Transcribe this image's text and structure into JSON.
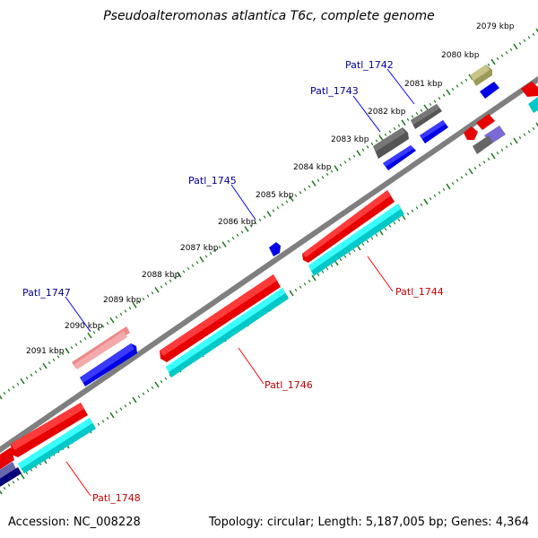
{
  "title": "Pseudoalteromonas atlantica T6c, complete genome",
  "footer": {
    "accession": "Accession: NC_008228",
    "summary": "Topology: circular; Length: 5,187,005 bp; Genes: 4,364"
  },
  "colors": {
    "backbone": "#7f7f7f",
    "tick": "#1a7a1a",
    "label_forward": "#00009c",
    "label_reverse": "#c80000",
    "leader_forward": "#0000ff",
    "leader_reverse": "#ff0000"
  },
  "tick_labels": [
    "2079 kbp",
    "2080 kbp",
    "2081 kbp",
    "2082 kbp",
    "2083 kbp",
    "2084 kbp",
    "2085 kbp",
    "2086 kbp",
    "2087 kbp",
    "2088 kbp",
    "2089 kbp",
    "2090 kbp",
    "2091 kbp"
  ],
  "gene_labels": {
    "patl_1742": "Patl_1742",
    "patl_1743": "Patl_1743",
    "patl_1744": "Patl_1744",
    "patl_1745": "Patl_1745",
    "patl_1746": "Patl_1746",
    "patl_1747": "Patl_1747",
    "patl_1748": "Patl_1748"
  }
}
